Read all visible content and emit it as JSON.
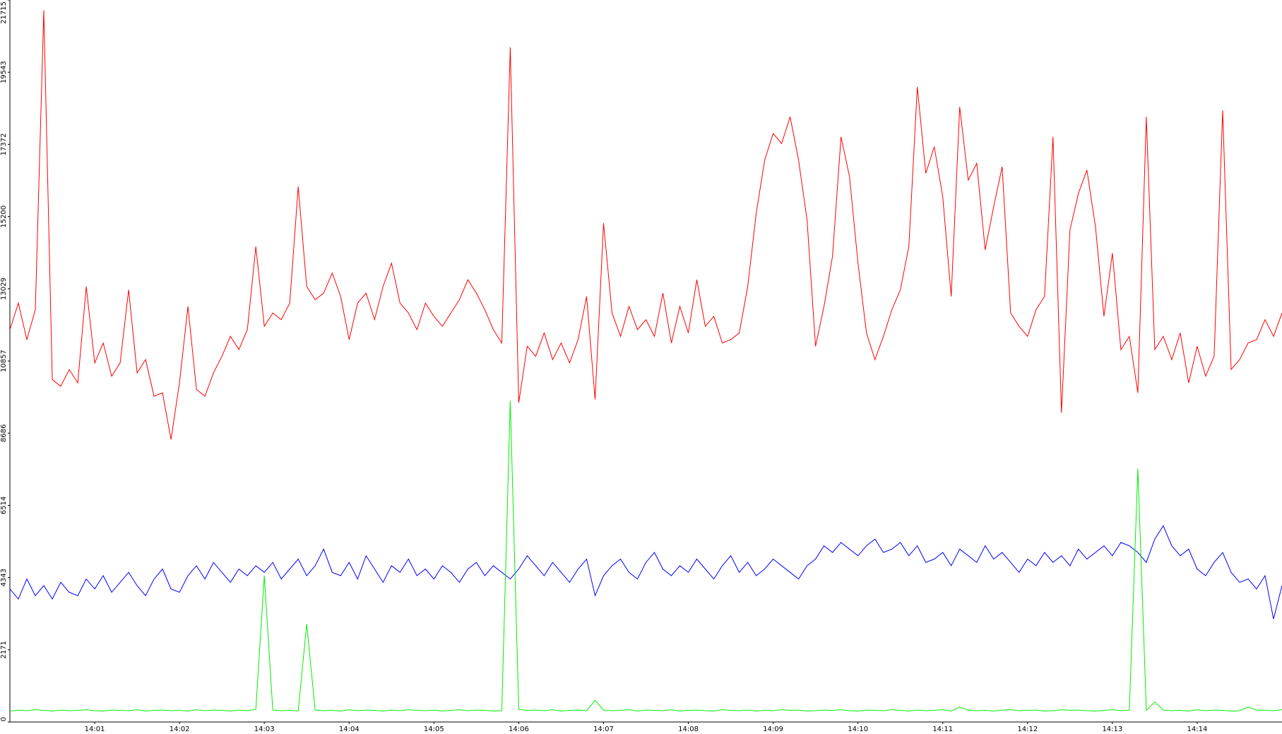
{
  "chart_data": {
    "type": "line",
    "x": [
      0,
      0.1,
      0.2,
      0.3,
      0.4,
      0.5,
      0.6,
      0.7,
      0.8,
      0.9,
      1,
      1.1,
      1.2,
      1.3,
      1.4,
      1.5,
      1.6,
      1.7,
      1.8,
      1.9,
      2,
      2.1,
      2.2,
      2.3,
      2.4,
      2.5,
      2.6,
      2.7,
      2.8,
      2.9,
      3,
      3.1,
      3.2,
      3.3,
      3.4,
      3.5,
      3.6,
      3.7,
      3.8,
      3.9,
      4,
      4.1,
      4.2,
      4.3,
      4.4,
      4.5,
      4.6,
      4.7,
      4.8,
      4.9,
      5,
      5.1,
      5.2,
      5.3,
      5.4,
      5.5,
      5.6,
      5.7,
      5.8,
      5.9,
      6,
      6.1,
      6.2,
      6.3,
      6.4,
      6.5,
      6.6,
      6.7,
      6.8,
      6.9,
      7,
      7.1,
      7.2,
      7.3,
      7.4,
      7.5,
      7.6,
      7.7,
      7.8,
      7.9,
      8,
      8.1,
      8.2,
      8.3,
      8.4,
      8.5,
      8.6,
      8.7,
      8.8,
      8.9,
      9,
      9.1,
      9.2,
      9.3,
      9.4,
      9.5,
      9.6,
      9.7,
      9.8,
      9.9,
      10,
      10.1,
      10.2,
      10.3,
      10.4,
      10.5,
      10.6,
      10.7,
      10.8,
      10.9,
      11,
      11.1,
      11.2,
      11.3,
      11.4,
      11.5,
      11.6,
      11.7,
      11.8,
      11.9,
      12,
      12.1,
      12.2,
      12.3,
      12.4,
      12.5,
      12.6,
      12.7,
      12.8,
      12.9,
      13,
      13.1,
      13.2,
      13.3,
      13.4,
      13.5,
      13.6,
      13.7,
      13.8,
      13.9,
      14,
      14.1,
      14.2,
      14.3,
      14.4,
      14.5,
      14.6,
      14.7,
      14.8,
      14.9,
      15
    ],
    "series": [
      {
        "color": "#ff0000",
        "values": [
          11800,
          12600,
          11500,
          12400,
          21400,
          10300,
          10100,
          10600,
          10200,
          13100,
          10800,
          11400,
          10400,
          10800,
          13000,
          10500,
          10900,
          9800,
          9900,
          8500,
          10200,
          12500,
          10000,
          9800,
          10500,
          11000,
          11600,
          11200,
          11800,
          14300,
          11900,
          12300,
          12100,
          12600,
          16100,
          13100,
          12700,
          12900,
          13500,
          12800,
          11500,
          12600,
          12900,
          12100,
          13100,
          13800,
          12600,
          12300,
          11800,
          12600,
          12200,
          11900,
          12300,
          12700,
          13300,
          12900,
          12400,
          11800,
          11400,
          20290,
          9600,
          11300,
          11000,
          11700,
          10900,
          11400,
          10800,
          11500,
          12800,
          9700,
          15000,
          12300,
          11600,
          12500,
          11800,
          12100,
          11600,
          12900,
          11400,
          12500,
          11700,
          13300,
          11900,
          12200,
          11400,
          11500,
          11700,
          13100,
          15300,
          16900,
          17700,
          17400,
          18200,
          16900,
          15100,
          11300,
          12500,
          14000,
          17600,
          16400,
          13800,
          11700,
          10900,
          11600,
          12400,
          13000,
          14300,
          19100,
          16500,
          17300,
          15800,
          12800,
          18500,
          16300,
          16800,
          14200,
          15500,
          16700,
          12300,
          11900,
          11600,
          12400,
          12800,
          17600,
          9300,
          14800,
          15900,
          16600,
          14900,
          12200,
          14100,
          11200,
          11600,
          9900,
          18200,
          11200,
          11600,
          10900,
          11700,
          10200,
          11300,
          10400,
          11000,
          18400,
          10600,
          10900,
          11400,
          11500,
          12100,
          11600,
          12300
        ]
      },
      {
        "color": "#0000ff",
        "values": [
          4000,
          3700,
          4300,
          3800,
          4100,
          3700,
          4200,
          3900,
          3800,
          4300,
          4000,
          4400,
          3900,
          4200,
          4500,
          4100,
          3800,
          4300,
          4600,
          4000,
          3900,
          4400,
          4700,
          4300,
          4800,
          4500,
          4200,
          4600,
          4400,
          4700,
          4500,
          4800,
          4300,
          4600,
          4900,
          4400,
          4700,
          5200,
          4500,
          4400,
          4800,
          4300,
          5000,
          4600,
          4200,
          4700,
          4500,
          4900,
          4400,
          4600,
          4300,
          4700,
          4500,
          4200,
          4600,
          4800,
          4400,
          4700,
          4500,
          4300,
          4600,
          5000,
          4700,
          4400,
          4800,
          4500,
          4200,
          4600,
          4900,
          3800,
          4400,
          4700,
          4900,
          4500,
          4300,
          4800,
          5100,
          4600,
          4400,
          4700,
          4500,
          4900,
          4600,
          4300,
          4700,
          5000,
          4500,
          4800,
          4400,
          4600,
          4900,
          4700,
          4500,
          4300,
          4700,
          4900,
          5300,
          5100,
          5400,
          5200,
          5000,
          5300,
          5500,
          5100,
          5200,
          5400,
          5000,
          5300,
          4800,
          4900,
          5100,
          4700,
          5200,
          5000,
          4800,
          5300,
          4900,
          5100,
          4800,
          4500,
          4900,
          4700,
          5100,
          4800,
          5000,
          4700,
          5200,
          4900,
          5100,
          5300,
          5000,
          5400,
          5300,
          5100,
          4800,
          5500,
          5900,
          5300,
          5000,
          5200,
          4600,
          4400,
          4800,
          5100,
          4500,
          4200,
          4300,
          4000,
          4400,
          3100,
          4100
        ]
      },
      {
        "color": "#00ee00",
        "values": [
          330,
          360,
          340,
          370,
          350,
          330,
          360,
          340,
          350,
          370,
          340,
          330,
          360,
          350,
          340,
          370,
          330,
          350,
          360,
          340,
          350,
          330,
          370,
          340,
          360,
          350,
          330,
          360,
          340,
          380,
          4400,
          360,
          340,
          350,
          330,
          2950,
          360,
          340,
          350,
          330,
          370,
          340,
          360,
          350,
          330,
          360,
          340,
          370,
          350,
          340,
          360,
          330,
          350,
          370,
          340,
          360,
          350,
          330,
          340,
          9660,
          380,
          350,
          360,
          340,
          370,
          330,
          350,
          360,
          340,
          650,
          360,
          340,
          350,
          370,
          330,
          360,
          350,
          340,
          370,
          330,
          350,
          360,
          340,
          330,
          370,
          350,
          340,
          360,
          330,
          350,
          340,
          370,
          350,
          360,
          330,
          340,
          360,
          350,
          370,
          340,
          330,
          360,
          350,
          340,
          370,
          350,
          330,
          360,
          340,
          350,
          370,
          330,
          450,
          360,
          340,
          350,
          330,
          360,
          370,
          340,
          350,
          360,
          330,
          340,
          370,
          350,
          360,
          340,
          330,
          350,
          370,
          340,
          360,
          7620,
          350,
          600,
          360,
          340,
          350,
          330,
          370,
          340,
          360,
          350,
          330,
          340,
          450,
          360,
          350,
          340,
          370
        ]
      }
    ],
    "xlim": [
      0,
      15
    ],
    "xticks": [
      {
        "value": 1,
        "label": "14:01"
      },
      {
        "value": 2,
        "label": "14:02"
      },
      {
        "value": 3,
        "label": "14:03"
      },
      {
        "value": 4,
        "label": "14:04"
      },
      {
        "value": 5,
        "label": "14:05"
      },
      {
        "value": 6,
        "label": "14:06"
      },
      {
        "value": 7,
        "label": "14:07"
      },
      {
        "value": 8,
        "label": "14:08"
      },
      {
        "value": 9,
        "label": "14:09"
      },
      {
        "value": 10,
        "label": "14:10"
      },
      {
        "value": 11,
        "label": "14:11"
      },
      {
        "value": 12,
        "label": "14:12"
      },
      {
        "value": 13,
        "label": "14:13"
      },
      {
        "value": 14,
        "label": "14:14"
      }
    ],
    "ylim": [
      0,
      21715
    ],
    "yticks": [
      0,
      2171,
      4343,
      6514,
      8686,
      10857,
      13029,
      15200,
      17372,
      19543,
      21715
    ]
  }
}
